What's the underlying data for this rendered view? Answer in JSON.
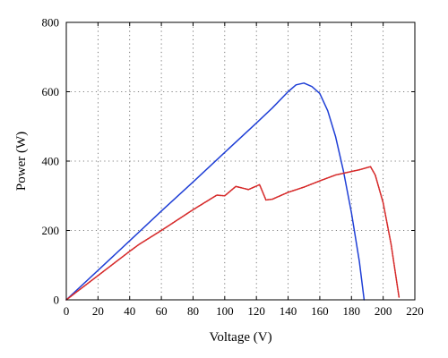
{
  "chart_data": {
    "type": "line",
    "title": "",
    "xlabel": "Voltage (V)",
    "ylabel": "Power (W)",
    "xlim": [
      0,
      220
    ],
    "ylim": [
      0,
      800
    ],
    "x_ticks": [
      0,
      20,
      40,
      60,
      80,
      100,
      120,
      140,
      160,
      180,
      200,
      220
    ],
    "y_ticks": [
      0,
      200,
      400,
      600,
      800
    ],
    "grid": "dotted",
    "legend": "none",
    "series": [
      {
        "color": "#1f3fd6",
        "style": "solid",
        "points": [
          [
            0,
            0
          ],
          [
            20,
            85
          ],
          [
            40,
            170
          ],
          [
            60,
            256
          ],
          [
            80,
            340
          ],
          [
            100,
            425
          ],
          [
            120,
            510
          ],
          [
            130,
            553
          ],
          [
            140,
            600
          ],
          [
            145,
            620
          ],
          [
            150,
            625
          ],
          [
            155,
            615
          ],
          [
            160,
            595
          ],
          [
            165,
            545
          ],
          [
            170,
            470
          ],
          [
            175,
            370
          ],
          [
            180,
            250
          ],
          [
            185,
            110
          ],
          [
            188,
            0
          ]
        ]
      },
      {
        "color": "#d62a2a",
        "style": "dotted",
        "points": [
          [
            0,
            0
          ],
          [
            20,
            70
          ],
          [
            40,
            140
          ],
          [
            46,
            160
          ],
          [
            60,
            200
          ],
          [
            80,
            260
          ],
          [
            95,
            302
          ],
          [
            100,
            300
          ],
          [
            107,
            327
          ],
          [
            115,
            318
          ],
          [
            122,
            332
          ],
          [
            124,
            310
          ],
          [
            126,
            288
          ],
          [
            130,
            290
          ],
          [
            140,
            310
          ],
          [
            150,
            325
          ],
          [
            160,
            343
          ],
          [
            170,
            360
          ],
          [
            180,
            370
          ],
          [
            185,
            375
          ],
          [
            192,
            384
          ],
          [
            195,
            360
          ],
          [
            200,
            280
          ],
          [
            205,
            160
          ],
          [
            210,
            8
          ]
        ]
      }
    ]
  }
}
